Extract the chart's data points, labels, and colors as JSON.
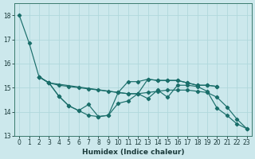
{
  "xlabel": "Humidex (Indice chaleur)",
  "bg_color": "#cce8ec",
  "grid_color": "#b0d8dc",
  "line_color": "#1a6e6a",
  "xlim": [
    -0.5,
    23.5
  ],
  "ylim": [
    13.0,
    18.5
  ],
  "yticks": [
    13,
    14,
    15,
    16,
    17,
    18
  ],
  "xticks": [
    0,
    1,
    2,
    3,
    4,
    5,
    6,
    7,
    8,
    9,
    10,
    11,
    12,
    13,
    14,
    15,
    16,
    17,
    18,
    19,
    20,
    21,
    22,
    23
  ],
  "lines": [
    {
      "x": [
        0,
        1,
        2,
        3,
        4,
        5,
        6,
        7,
        8,
        9,
        10,
        11,
        12,
        13,
        14,
        15,
        16,
        17,
        18,
        19,
        20,
        21,
        22,
        23
      ],
      "y": [
        18.0,
        16.85,
        15.45,
        15.2,
        14.65,
        14.25,
        14.05,
        13.85,
        13.8,
        13.85,
        14.35,
        14.45,
        14.75,
        14.55,
        14.9,
        14.6,
        15.1,
        15.1,
        15.05,
        14.85,
        14.15,
        13.85,
        13.5,
        13.3
      ]
    },
    {
      "x": [
        2,
        3,
        4,
        5,
        6,
        7,
        8,
        9,
        10,
        11,
        12,
        13,
        14,
        15,
        16,
        17,
        18,
        19,
        20,
        21,
        22,
        23
      ],
      "y": [
        15.45,
        15.2,
        15.1,
        15.05,
        15.0,
        14.95,
        14.9,
        14.85,
        14.8,
        14.75,
        14.75,
        14.8,
        14.85,
        14.9,
        14.9,
        14.9,
        14.85,
        14.8,
        14.6,
        14.2,
        13.7,
        13.3
      ]
    },
    {
      "x": [
        2,
        3,
        10,
        11,
        12,
        13,
        14,
        15,
        16,
        17,
        18,
        19,
        20
      ],
      "y": [
        15.45,
        15.2,
        14.8,
        15.25,
        15.25,
        15.35,
        15.3,
        15.3,
        15.3,
        15.2,
        15.1,
        15.1,
        15.05
      ]
    },
    {
      "x": [
        2,
        3,
        4,
        5,
        6,
        7,
        8,
        9,
        10,
        11,
        12,
        13,
        14,
        15,
        16,
        17,
        18,
        19,
        20
      ],
      "y": [
        15.45,
        15.2,
        14.65,
        14.25,
        14.05,
        14.3,
        13.8,
        13.85,
        14.8,
        14.75,
        14.75,
        15.35,
        15.3,
        15.3,
        15.3,
        15.2,
        15.1,
        15.1,
        15.05
      ]
    }
  ],
  "marker": "D",
  "markersize": 2.2,
  "linewidth": 0.85,
  "tick_fontsize": 5.5,
  "xlabel_fontsize": 6.5
}
